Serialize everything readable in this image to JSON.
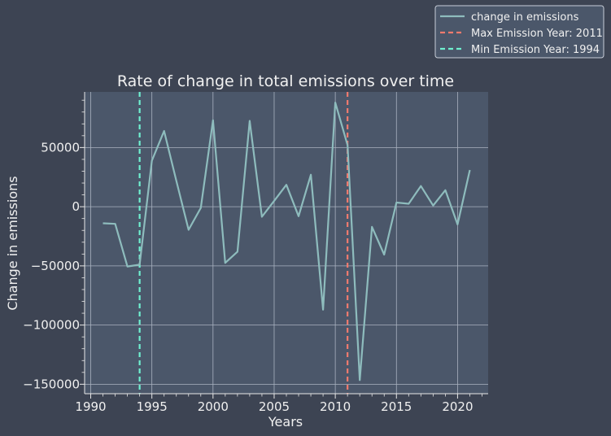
{
  "chart_data": {
    "type": "line",
    "title": "Rate of change in total emissions over time",
    "xlabel": "Years",
    "ylabel": "Change in emissions",
    "xlim": [
      1989.5,
      2022.5
    ],
    "ylim": [
      -158000,
      97000
    ],
    "xticks": [
      1990,
      1995,
      2000,
      2005,
      2010,
      2015,
      2020
    ],
    "yticks": [
      -150000,
      -100000,
      -50000,
      0,
      50000
    ],
    "ytick_labels": [
      "−150000",
      "−100000",
      "−50000",
      "0",
      "50000"
    ],
    "grid": true,
    "legend_position": "top-right",
    "series": [
      {
        "name": "change in emissions",
        "color": "#8ebcbd",
        "x": [
          1991,
          1992,
          1993,
          1994,
          1995,
          1996,
          1997,
          1998,
          1999,
          2000,
          2001,
          2002,
          2003,
          2004,
          2005,
          2006,
          2007,
          2008,
          2009,
          2010,
          2011,
          2012,
          2013,
          2014,
          2015,
          2016,
          2017,
          2018,
          2019,
          2020,
          2021
        ],
        "y": [
          -14000,
          -14500,
          -50500,
          -49000,
          39000,
          64000,
          22000,
          -19500,
          -1000,
          73000,
          -47500,
          -38000,
          72500,
          -8500,
          5000,
          18500,
          -8000,
          27000,
          -87000,
          88000,
          52000,
          -146500,
          -17000,
          -40500,
          3500,
          2500,
          17500,
          1000,
          14000,
          -15000,
          31000
        ]
      }
    ],
    "annotations": [
      {
        "label": "Max Emission Year: 2011",
        "x": 2011,
        "color": "#f07b6e",
        "style": "dashed"
      },
      {
        "label": "Min Emission Year: 1994",
        "x": 1994,
        "color": "#6ff0d0",
        "style": "dashed"
      }
    ]
  }
}
